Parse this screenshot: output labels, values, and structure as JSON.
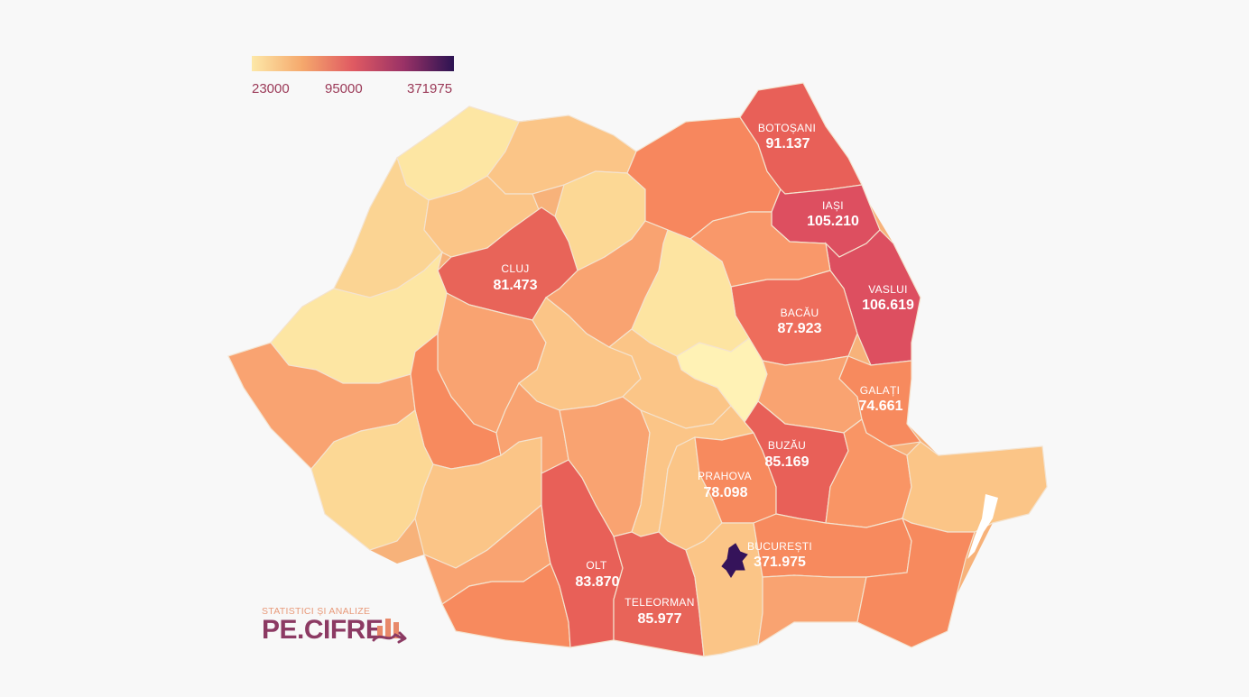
{
  "legend": {
    "min": "23000",
    "mid": "95000",
    "max": "371975",
    "colors": [
      "#fde8a8",
      "#f5a86c",
      "#e05a62",
      "#9a3266",
      "#2c1352"
    ]
  },
  "brand": {
    "tagline": "STATISTICI ȘI ANALIZE",
    "name": "PE.CIFRE",
    "color": "#8c3a63",
    "accent": "#e8896a",
    "icon": "bar-chart-arrow-icon"
  },
  "labels": {
    "botosani": {
      "name": "BOTOȘANI",
      "value": "91.137"
    },
    "iasi": {
      "name": "IAȘI",
      "value": "105.210"
    },
    "vaslui": {
      "name": "VASLUI",
      "value": "106.619"
    },
    "bacau": {
      "name": "BACĂU",
      "value": "87.923"
    },
    "galati": {
      "name": "GALAȚI",
      "value": "74.661"
    },
    "buzau": {
      "name": "BUZĂU",
      "value": "85.169"
    },
    "prahova": {
      "name": "PRAHOVA",
      "value": "78.098"
    },
    "bucuresti": {
      "name": "BUCUREȘTI",
      "value": "371.975"
    },
    "olt": {
      "name": "OLT",
      "value": "83.870"
    },
    "teleorman": {
      "name": "TELEORMAN",
      "value": "85.977"
    },
    "cluj": {
      "name": "CLUJ",
      "value": "81.473"
    }
  }
}
